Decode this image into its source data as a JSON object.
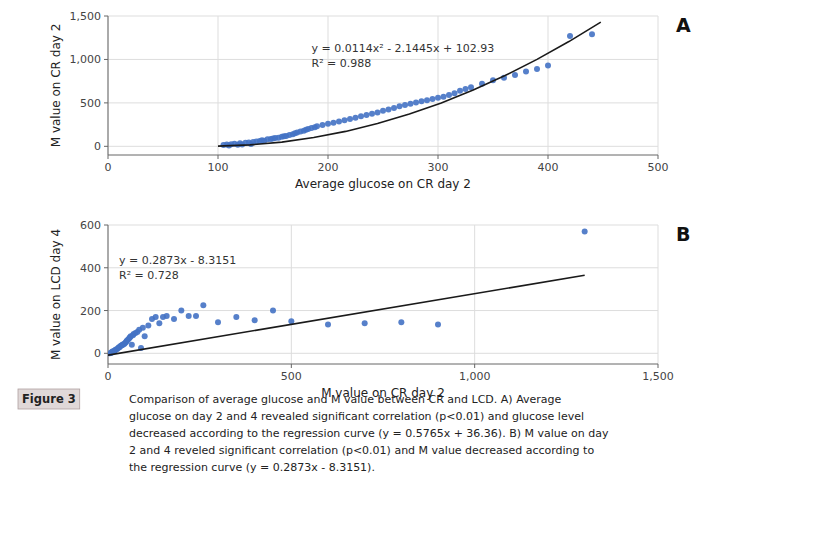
{
  "chart_data": [
    {
      "type": "scatter",
      "title": "A",
      "x_label": "Average glucose on CR day 2",
      "y_label": "M value on CR day 2",
      "annotations": [
        "y = 0.0114x² - 2.1445x + 102.93",
        "R² = 0.988"
      ],
      "xlim": [
        0,
        500
      ],
      "ylim": [
        -100,
        1500
      ],
      "xticks": [
        0,
        100,
        200,
        300,
        400,
        500
      ],
      "yticks": [
        0,
        500,
        {
          "value": 1000,
          "label": "1,000"
        },
        {
          "value": 1500,
          "label": "1,500"
        }
      ],
      "grid": true,
      "series": [
        {
          "type": "scatter",
          "color": "#4472C4",
          "marker": "circle",
          "x": [
            105,
            108,
            110,
            112,
            115,
            118,
            120,
            122,
            125,
            128,
            130,
            132,
            135,
            138,
            140,
            142,
            145,
            148,
            150,
            152,
            155,
            158,
            160,
            162,
            165,
            168,
            170,
            172,
            175,
            178,
            180,
            182,
            185,
            188,
            190,
            195,
            200,
            205,
            210,
            215,
            220,
            225,
            230,
            235,
            240,
            245,
            250,
            255,
            260,
            265,
            270,
            275,
            280,
            285,
            290,
            295,
            300,
            305,
            310,
            315,
            320,
            325,
            330,
            340,
            350,
            360,
            370,
            380,
            390,
            400,
            420,
            440
          ],
          "values": [
            15,
            20,
            10,
            25,
            30,
            18,
            35,
            22,
            40,
            45,
            28,
            50,
            55,
            60,
            70,
            65,
            80,
            85,
            90,
            95,
            100,
            110,
            115,
            120,
            130,
            140,
            150,
            160,
            170,
            180,
            190,
            200,
            210,
            220,
            230,
            245,
            260,
            270,
            285,
            300,
            315,
            330,
            345,
            360,
            375,
            390,
            410,
            425,
            440,
            460,
            475,
            490,
            505,
            520,
            530,
            545,
            560,
            570,
            590,
            610,
            640,
            660,
            680,
            720,
            760,
            790,
            820,
            860,
            890,
            930,
            1270,
            1290
          ]
        },
        {
          "type": "line",
          "color": "#1a1a1a",
          "line_style": "solid",
          "x": [
            100,
            129,
            158,
            187,
            216,
            245,
            274,
            303,
            332,
            361,
            390,
            419,
            448
          ],
          "values": [
            2.48,
            15.9969,
            48.6886,
            100.5551,
            171.5964,
            261.8125,
            371.2034,
            499.7691,
            647.5096,
            814.4249,
            1000.515,
            1205.7799,
            1430.2196
          ]
        }
      ]
    },
    {
      "type": "scatter",
      "title": "B",
      "x_label": "M value on CR day 2",
      "y_label": "M value on LCD day 4",
      "annotations": [
        "y = 0.2873x - 8.3151",
        "R² = 0.728"
      ],
      "xlim": [
        0,
        1500
      ],
      "ylim": [
        -50,
        600
      ],
      "xticks": [
        0,
        500,
        {
          "value": 1000,
          "label": "1,000"
        },
        {
          "value": 1500,
          "label": "1,500"
        }
      ],
      "yticks": [
        0,
        200,
        400,
        600
      ],
      "grid": true,
      "series": [
        {
          "type": "scatter",
          "color": "#4472C4",
          "marker": "circle",
          "x": [
            5,
            8,
            10,
            12,
            15,
            18,
            20,
            22,
            25,
            28,
            30,
            32,
            35,
            38,
            40,
            42,
            45,
            48,
            50,
            52,
            55,
            58,
            60,
            62,
            65,
            68,
            70,
            75,
            80,
            85,
            90,
            95,
            100,
            110,
            120,
            130,
            140,
            150,
            160,
            180,
            200,
            220,
            240,
            260,
            300,
            350,
            400,
            450,
            500,
            600,
            700,
            800,
            900,
            1300
          ],
          "values": [
            0,
            2,
            5,
            8,
            10,
            12,
            15,
            18,
            20,
            25,
            28,
            30,
            35,
            38,
            40,
            42,
            45,
            50,
            55,
            60,
            65,
            70,
            75,
            80,
            40,
            85,
            90,
            95,
            100,
            110,
            25,
            120,
            80,
            130,
            160,
            170,
            140,
            170,
            175,
            160,
            200,
            175,
            175,
            225,
            145,
            170,
            155,
            200,
            150,
            135,
            140,
            145,
            135,
            570
          ]
        },
        {
          "type": "line",
          "color": "#1a1a1a",
          "line_style": "solid",
          "x": [
            0,
            1300
          ],
          "values": [
            -8.3151,
            365.1749
          ]
        }
      ]
    }
  ],
  "figure_label": "Figure 3",
  "caption": "Comparison of average glucose and M value between CR and LCD. A) Average\nglucose on day 2 and 4 revealed significant correlation (p<0.01) and glucose level\ndecreased according to the regression curve (y = 0.5765x + 36.36). B) M value on day\n2 and 4 reveled significant correlation (p<0.01) and M value decreased according to\nthe regression curve (y = 0.2873x - 8.3151)."
}
